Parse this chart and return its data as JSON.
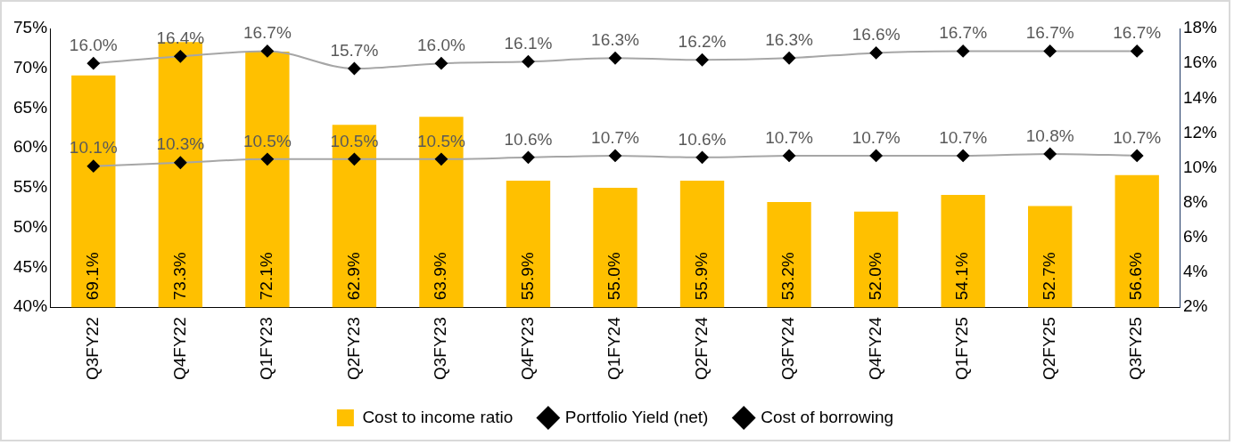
{
  "chart_data": {
    "type": "bar",
    "categories": [
      "Q3FY22",
      "Q4FY22",
      "Q1FY23",
      "Q2FY23",
      "Q3FY23",
      "Q4FY23",
      "Q1FY24",
      "Q2FY24",
      "Q3FY24",
      "Q4FY24",
      "Q1FY25",
      "Q2FY25",
      "Q3FY25"
    ],
    "series": [
      {
        "name": "Cost to income ratio",
        "color": "#ffc000",
        "values": [
          69.1,
          73.3,
          72.1,
          62.9,
          63.9,
          55.9,
          55.0,
          55.9,
          53.2,
          52.0,
          54.1,
          52.7,
          56.6
        ],
        "value_labels": [
          "69.1%",
          "73.3%",
          "72.1%",
          "62.9%",
          "63.9%",
          "55.9%",
          "55.0%",
          "55.9%",
          "53.2%",
          "52.0%",
          "54.1%",
          "52.7%",
          "56.6%"
        ]
      },
      {
        "name": "Portfolio Yield (net)",
        "type": "line",
        "axis": "y2",
        "color": "#a6a6a6",
        "values": [
          16.0,
          16.4,
          16.7,
          15.7,
          16.0,
          16.1,
          16.3,
          16.2,
          16.3,
          16.6,
          16.7,
          16.7,
          16.7
        ],
        "value_labels": [
          "16.0%",
          "16.4%",
          "16.7%",
          "15.7%",
          "16.0%",
          "16.1%",
          "16.3%",
          "16.2%",
          "16.3%",
          "16.6%",
          "16.7%",
          "16.7%",
          "16.7%"
        ]
      },
      {
        "name": "Cost of borrowing",
        "type": "line",
        "axis": "y2",
        "color": "#a6a6a6",
        "values": [
          10.1,
          10.3,
          10.5,
          10.5,
          10.5,
          10.6,
          10.7,
          10.6,
          10.7,
          10.7,
          10.7,
          10.8,
          10.7
        ],
        "value_labels": [
          "10.1%",
          "10.3%",
          "10.5%",
          "10.5%",
          "10.5%",
          "10.6%",
          "10.7%",
          "10.6%",
          "10.7%",
          "10.7%",
          "10.7%",
          "10.8%",
          "10.7%"
        ]
      }
    ],
    "ylim": [
      40,
      75
    ],
    "yticks": [
      {
        "value": 40,
        "label": "40%"
      },
      {
        "value": 45,
        "label": "45%"
      },
      {
        "value": 50,
        "label": "50%"
      },
      {
        "value": 55,
        "label": "55%"
      },
      {
        "value": 60,
        "label": "60%"
      },
      {
        "value": 65,
        "label": "65%"
      },
      {
        "value": 70,
        "label": "70%"
      },
      {
        "value": 75,
        "label": "75%"
      }
    ],
    "y2lim": [
      2,
      18
    ],
    "y2ticks": [
      {
        "value": 2,
        "label": "2%"
      },
      {
        "value": 4,
        "label": "4%"
      },
      {
        "value": 6,
        "label": "6%"
      },
      {
        "value": 8,
        "label": "8%"
      },
      {
        "value": 10,
        "label": "10%"
      },
      {
        "value": 12,
        "label": "12%"
      },
      {
        "value": 14,
        "label": "14%"
      },
      {
        "value": 16,
        "label": "16%"
      },
      {
        "value": 18,
        "label": "18%"
      }
    ],
    "grid": false,
    "legend": "bottom",
    "marker": "diamond"
  }
}
